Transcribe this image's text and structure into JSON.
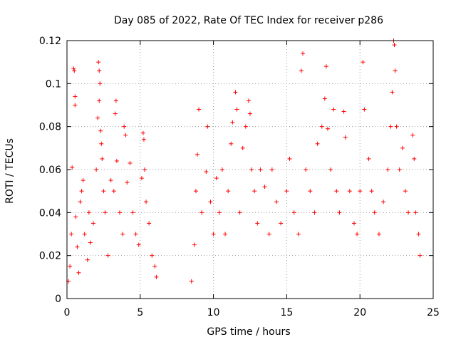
{
  "chart_data": {
    "type": "scatter",
    "title": "Day 085 of 2022, Rate Of TEC Index for receiver p286",
    "xlabel": "GPS time / hours",
    "ylabel": "ROTI / TECUs",
    "xlim": [
      0,
      25
    ],
    "ylim": [
      0,
      0.12
    ],
    "x_ticks": [
      "0",
      "5",
      "10",
      "15",
      "20",
      "25"
    ],
    "y_ticks": [
      "0",
      "0.02",
      "0.04",
      "0.06",
      "0.08",
      "0.1",
      "0.12"
    ],
    "x_tick_values": [
      0,
      5,
      10,
      15,
      20,
      25
    ],
    "y_tick_values": [
      0,
      0.02,
      0.04,
      0.06,
      0.08,
      0.1,
      0.12
    ],
    "grid": true,
    "marker": "plus",
    "color": "#ff0000",
    "series": [
      {
        "points": [
          [
            0.1,
            0.008
          ],
          [
            0.2,
            0.015
          ],
          [
            0.3,
            0.03
          ],
          [
            0.35,
            0.061
          ],
          [
            0.45,
            0.107
          ],
          [
            0.5,
            0.106
          ],
          [
            0.55,
            0.094
          ],
          [
            0.55,
            0.09
          ],
          [
            0.6,
            0.038
          ],
          [
            0.7,
            0.024
          ],
          [
            0.8,
            0.012
          ],
          [
            0.9,
            0.045
          ],
          [
            1.0,
            0.05
          ],
          [
            1.1,
            0.055
          ],
          [
            1.2,
            0.03
          ],
          [
            1.4,
            0.018
          ],
          [
            1.5,
            0.04
          ],
          [
            1.6,
            0.026
          ],
          [
            1.8,
            0.035
          ],
          [
            2.0,
            0.06
          ],
          [
            2.1,
            0.084
          ],
          [
            2.15,
            0.11
          ],
          [
            2.2,
            0.106
          ],
          [
            2.25,
            0.1
          ],
          [
            2.2,
            0.092
          ],
          [
            2.3,
            0.078
          ],
          [
            2.35,
            0.072
          ],
          [
            2.4,
            0.065
          ],
          [
            2.5,
            0.05
          ],
          [
            2.6,
            0.04
          ],
          [
            2.8,
            0.02
          ],
          [
            3.0,
            0.055
          ],
          [
            3.2,
            0.05
          ],
          [
            3.3,
            0.086
          ],
          [
            3.35,
            0.092
          ],
          [
            3.4,
            0.064
          ],
          [
            3.6,
            0.04
          ],
          [
            3.8,
            0.03
          ],
          [
            3.9,
            0.08
          ],
          [
            4.0,
            0.076
          ],
          [
            4.1,
            0.054
          ],
          [
            4.3,
            0.063
          ],
          [
            4.5,
            0.04
          ],
          [
            4.7,
            0.03
          ],
          [
            4.9,
            0.025
          ],
          [
            5.1,
            0.056
          ],
          [
            5.2,
            0.077
          ],
          [
            5.25,
            0.074
          ],
          [
            5.3,
            0.06
          ],
          [
            5.4,
            0.045
          ],
          [
            5.6,
            0.035
          ],
          [
            5.8,
            0.02
          ],
          [
            6.0,
            0.015
          ],
          [
            6.1,
            0.01
          ],
          [
            8.5,
            0.008
          ],
          [
            8.7,
            0.025
          ],
          [
            8.8,
            0.05
          ],
          [
            8.9,
            0.067
          ],
          [
            9.0,
            0.088
          ],
          [
            9.2,
            0.04
          ],
          [
            9.5,
            0.059
          ],
          [
            9.6,
            0.08
          ],
          [
            9.8,
            0.045
          ],
          [
            10.0,
            0.03
          ],
          [
            10.2,
            0.056
          ],
          [
            10.4,
            0.04
          ],
          [
            10.6,
            0.06
          ],
          [
            10.8,
            0.03
          ],
          [
            11.0,
            0.05
          ],
          [
            11.2,
            0.072
          ],
          [
            11.3,
            0.082
          ],
          [
            11.5,
            0.096
          ],
          [
            11.6,
            0.088
          ],
          [
            11.8,
            0.04
          ],
          [
            12.0,
            0.07
          ],
          [
            12.2,
            0.08
          ],
          [
            12.4,
            0.092
          ],
          [
            12.5,
            0.086
          ],
          [
            12.6,
            0.06
          ],
          [
            12.8,
            0.05
          ],
          [
            13.0,
            0.035
          ],
          [
            13.2,
            0.06
          ],
          [
            13.5,
            0.052
          ],
          [
            13.8,
            0.03
          ],
          [
            14.0,
            0.06
          ],
          [
            14.3,
            0.045
          ],
          [
            14.6,
            0.035
          ],
          [
            15.0,
            0.05
          ],
          [
            15.2,
            0.065
          ],
          [
            15.5,
            0.04
          ],
          [
            15.8,
            0.03
          ],
          [
            16.0,
            0.106
          ],
          [
            16.1,
            0.114
          ],
          [
            16.3,
            0.06
          ],
          [
            16.6,
            0.05
          ],
          [
            16.9,
            0.04
          ],
          [
            17.1,
            0.072
          ],
          [
            17.4,
            0.08
          ],
          [
            17.6,
            0.093
          ],
          [
            17.7,
            0.108
          ],
          [
            17.8,
            0.079
          ],
          [
            18.0,
            0.06
          ],
          [
            18.2,
            0.088
          ],
          [
            18.4,
            0.05
          ],
          [
            18.6,
            0.04
          ],
          [
            18.9,
            0.087
          ],
          [
            19.0,
            0.075
          ],
          [
            19.3,
            0.05
          ],
          [
            19.6,
            0.035
          ],
          [
            19.8,
            0.03
          ],
          [
            20.0,
            0.05
          ],
          [
            20.2,
            0.11
          ],
          [
            20.3,
            0.088
          ],
          [
            20.6,
            0.065
          ],
          [
            20.8,
            0.05
          ],
          [
            21.0,
            0.04
          ],
          [
            21.3,
            0.03
          ],
          [
            21.6,
            0.045
          ],
          [
            21.9,
            0.06
          ],
          [
            22.1,
            0.08
          ],
          [
            22.2,
            0.096
          ],
          [
            22.3,
            0.12
          ],
          [
            22.35,
            0.118
          ],
          [
            22.4,
            0.106
          ],
          [
            22.5,
            0.08
          ],
          [
            22.7,
            0.06
          ],
          [
            22.9,
            0.07
          ],
          [
            23.1,
            0.05
          ],
          [
            23.3,
            0.04
          ],
          [
            23.6,
            0.076
          ],
          [
            23.7,
            0.065
          ],
          [
            23.8,
            0.04
          ],
          [
            24.0,
            0.03
          ],
          [
            24.1,
            0.02
          ]
        ]
      }
    ]
  }
}
